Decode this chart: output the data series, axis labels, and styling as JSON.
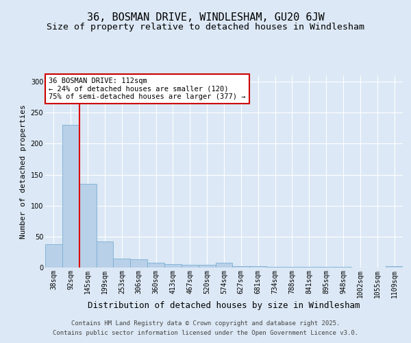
{
  "title1": "36, BOSMAN DRIVE, WINDLESHAM, GU20 6JW",
  "title2": "Size of property relative to detached houses in Windlesham",
  "xlabel": "Distribution of detached houses by size in Windlesham",
  "ylabel": "Number of detached properties",
  "categories": [
    "38sqm",
    "92sqm",
    "145sqm",
    "199sqm",
    "253sqm",
    "306sqm",
    "360sqm",
    "413sqm",
    "467sqm",
    "520sqm",
    "574sqm",
    "627sqm",
    "681sqm",
    "734sqm",
    "788sqm",
    "841sqm",
    "895sqm",
    "948sqm",
    "1002sqm",
    "1055sqm",
    "1109sqm"
  ],
  "values": [
    38,
    230,
    135,
    42,
    14,
    13,
    8,
    5,
    4,
    4,
    8,
    2,
    2,
    1,
    1,
    1,
    1,
    1,
    0,
    0,
    2
  ],
  "bar_color": "#b8d0e8",
  "bar_edge_color": "#7aafd4",
  "red_line_color": "#dd0000",
  "red_line_x": 1.5,
  "annotation_text": "36 BOSMAN DRIVE: 112sqm\n← 24% of detached houses are smaller (120)\n75% of semi-detached houses are larger (377) →",
  "annotation_box_facecolor": "#ffffff",
  "annotation_box_edgecolor": "#cc0000",
  "footer1": "Contains HM Land Registry data © Crown copyright and database right 2025.",
  "footer2": "Contains public sector information licensed under the Open Government Licence v3.0.",
  "bg_color": "#dce8f5",
  "plot_bg_color": "#dce8f5",
  "ylim": [
    0,
    310
  ],
  "yticks": [
    0,
    50,
    100,
    150,
    200,
    250,
    300
  ],
  "title1_fontsize": 11,
  "title2_fontsize": 9.5,
  "xlabel_fontsize": 9,
  "ylabel_fontsize": 8,
  "tick_fontsize": 7,
  "annotation_fontsize": 7.5,
  "footer_fontsize": 6.5
}
